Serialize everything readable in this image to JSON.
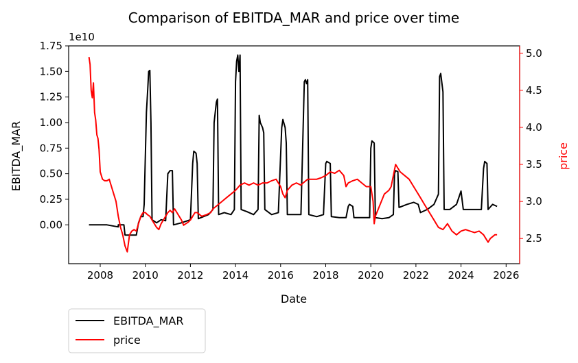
{
  "chart_data": {
    "type": "line",
    "title": "Comparison of EBITDA_MAR and price over time",
    "xlabel": "Date",
    "ylabel_left": "EBITDA_MAR",
    "ylabel_right": "price",
    "left_axis_multiplier": "1e10",
    "xlim": [
      2006.6,
      2026.6
    ],
    "ylim_left": [
      -0.38,
      1.75
    ],
    "ylim_right": [
      2.16,
      5.1
    ],
    "x_ticks": [
      2008,
      2010,
      2012,
      2014,
      2016,
      2018,
      2020,
      2022,
      2024,
      2026
    ],
    "y_ticks_left": [
      "0.00",
      "0.25",
      "0.50",
      "0.75",
      "1.00",
      "1.25",
      "1.50",
      "1.75"
    ],
    "y_ticks_right": [
      "2.5",
      "3.0",
      "3.5",
      "4.0",
      "4.5",
      "5.0"
    ],
    "legend_placement": "below-left",
    "grid": false,
    "colors": {
      "EBITDA_MAR": "#000000",
      "price": "#ff0000",
      "right_axis": "#ff0000"
    },
    "series": [
      {
        "name": "EBITDA_MAR",
        "axis": "left",
        "points": [
          [
            2007.5,
            0.0
          ],
          [
            2008.3,
            0.0
          ],
          [
            2008.8,
            -0.02
          ],
          [
            2008.8,
            0.0
          ],
          [
            2009.05,
            0.0
          ],
          [
            2009.1,
            -0.1
          ],
          [
            2009.6,
            -0.1
          ],
          [
            2009.7,
            0.02
          ],
          [
            2009.8,
            0.08
          ],
          [
            2009.9,
            0.08
          ],
          [
            2009.95,
            0.2
          ],
          [
            2010.05,
            1.1
          ],
          [
            2010.1,
            1.3
          ],
          [
            2010.15,
            1.5
          ],
          [
            2010.2,
            1.51
          ],
          [
            2010.25,
            1.0
          ],
          [
            2010.3,
            0.05
          ],
          [
            2010.5,
            0.02
          ],
          [
            2010.7,
            0.05
          ],
          [
            2010.9,
            0.04
          ],
          [
            2011.0,
            0.5
          ],
          [
            2011.1,
            0.53
          ],
          [
            2011.2,
            0.53
          ],
          [
            2011.25,
            0.0
          ],
          [
            2011.6,
            0.02
          ],
          [
            2012.0,
            0.05
          ],
          [
            2012.1,
            0.6
          ],
          [
            2012.15,
            0.72
          ],
          [
            2012.25,
            0.7
          ],
          [
            2012.3,
            0.6
          ],
          [
            2012.35,
            0.06
          ],
          [
            2012.8,
            0.1
          ],
          [
            2013.0,
            0.15
          ],
          [
            2013.05,
            1.0
          ],
          [
            2013.15,
            1.2
          ],
          [
            2013.2,
            1.23
          ],
          [
            2013.25,
            0.1
          ],
          [
            2013.5,
            0.12
          ],
          [
            2013.8,
            0.1
          ],
          [
            2013.95,
            0.15
          ],
          [
            2014.0,
            1.4
          ],
          [
            2014.05,
            1.6
          ],
          [
            2014.1,
            1.66
          ],
          [
            2014.15,
            1.5
          ],
          [
            2014.2,
            1.66
          ],
          [
            2014.25,
            0.15
          ],
          [
            2014.5,
            0.13
          ],
          [
            2014.8,
            0.1
          ],
          [
            2015.0,
            0.15
          ],
          [
            2015.05,
            1.07
          ],
          [
            2015.1,
            1.0
          ],
          [
            2015.2,
            0.95
          ],
          [
            2015.25,
            0.9
          ],
          [
            2015.3,
            0.15
          ],
          [
            2015.6,
            0.1
          ],
          [
            2015.9,
            0.12
          ],
          [
            2016.05,
            0.95
          ],
          [
            2016.1,
            1.03
          ],
          [
            2016.2,
            0.95
          ],
          [
            2016.25,
            0.8
          ],
          [
            2016.3,
            0.1
          ],
          [
            2016.6,
            0.1
          ],
          [
            2016.9,
            0.1
          ],
          [
            2017.05,
            1.4
          ],
          [
            2017.1,
            1.42
          ],
          [
            2017.15,
            1.38
          ],
          [
            2017.2,
            1.42
          ],
          [
            2017.25,
            0.1
          ],
          [
            2017.6,
            0.08
          ],
          [
            2017.9,
            0.1
          ],
          [
            2018.0,
            0.6
          ],
          [
            2018.05,
            0.62
          ],
          [
            2018.2,
            0.6
          ],
          [
            2018.25,
            0.08
          ],
          [
            2018.6,
            0.07
          ],
          [
            2018.9,
            0.07
          ],
          [
            2019.0,
            0.18
          ],
          [
            2019.05,
            0.2
          ],
          [
            2019.2,
            0.18
          ],
          [
            2019.25,
            0.07
          ],
          [
            2019.6,
            0.07
          ],
          [
            2019.95,
            0.07
          ],
          [
            2020.0,
            0.75
          ],
          [
            2020.05,
            0.82
          ],
          [
            2020.15,
            0.8
          ],
          [
            2020.2,
            0.07
          ],
          [
            2020.5,
            0.06
          ],
          [
            2020.8,
            0.07
          ],
          [
            2021.0,
            0.1
          ],
          [
            2021.05,
            0.5
          ],
          [
            2021.1,
            0.53
          ],
          [
            2021.2,
            0.52
          ],
          [
            2021.25,
            0.17
          ],
          [
            2021.6,
            0.2
          ],
          [
            2021.9,
            0.22
          ],
          [
            2022.1,
            0.2
          ],
          [
            2022.2,
            0.12
          ],
          [
            2022.5,
            0.15
          ],
          [
            2022.8,
            0.2
          ],
          [
            2023.0,
            0.3
          ],
          [
            2023.05,
            1.45
          ],
          [
            2023.1,
            1.48
          ],
          [
            2023.2,
            1.3
          ],
          [
            2023.25,
            0.15
          ],
          [
            2023.5,
            0.15
          ],
          [
            2023.8,
            0.2
          ],
          [
            2024.0,
            0.33
          ],
          [
            2024.1,
            0.15
          ],
          [
            2024.5,
            0.15
          ],
          [
            2024.9,
            0.15
          ],
          [
            2025.0,
            0.55
          ],
          [
            2025.05,
            0.62
          ],
          [
            2025.15,
            0.6
          ],
          [
            2025.2,
            0.15
          ],
          [
            2025.4,
            0.2
          ],
          [
            2025.6,
            0.18
          ]
        ]
      },
      {
        "name": "price",
        "axis": "right",
        "points": [
          [
            2007.5,
            4.95
          ],
          [
            2007.55,
            4.85
          ],
          [
            2007.6,
            4.5
          ],
          [
            2007.65,
            4.4
          ],
          [
            2007.7,
            4.6
          ],
          [
            2007.75,
            4.2
          ],
          [
            2007.8,
            4.1
          ],
          [
            2007.85,
            3.9
          ],
          [
            2007.9,
            3.85
          ],
          [
            2007.95,
            3.7
          ],
          [
            2008.0,
            3.4
          ],
          [
            2008.1,
            3.3
          ],
          [
            2008.2,
            3.28
          ],
          [
            2008.3,
            3.28
          ],
          [
            2008.4,
            3.3
          ],
          [
            2008.5,
            3.2
          ],
          [
            2008.6,
            3.1
          ],
          [
            2008.7,
            3.0
          ],
          [
            2008.8,
            2.8
          ],
          [
            2008.9,
            2.65
          ],
          [
            2009.0,
            2.55
          ],
          [
            2009.1,
            2.4
          ],
          [
            2009.2,
            2.32
          ],
          [
            2009.3,
            2.55
          ],
          [
            2009.4,
            2.6
          ],
          [
            2009.5,
            2.62
          ],
          [
            2009.6,
            2.6
          ],
          [
            2009.7,
            2.7
          ],
          [
            2009.8,
            2.8
          ],
          [
            2009.9,
            2.85
          ],
          [
            2010.0,
            2.85
          ],
          [
            2010.1,
            2.82
          ],
          [
            2010.2,
            2.8
          ],
          [
            2010.3,
            2.75
          ],
          [
            2010.4,
            2.7
          ],
          [
            2010.5,
            2.65
          ],
          [
            2010.6,
            2.62
          ],
          [
            2010.7,
            2.7
          ],
          [
            2010.8,
            2.75
          ],
          [
            2010.9,
            2.8
          ],
          [
            2011.0,
            2.85
          ],
          [
            2011.1,
            2.88
          ],
          [
            2011.2,
            2.85
          ],
          [
            2011.3,
            2.9
          ],
          [
            2011.4,
            2.85
          ],
          [
            2011.5,
            2.8
          ],
          [
            2011.6,
            2.75
          ],
          [
            2011.7,
            2.68
          ],
          [
            2011.8,
            2.7
          ],
          [
            2011.9,
            2.72
          ],
          [
            2012.0,
            2.75
          ],
          [
            2012.1,
            2.8
          ],
          [
            2012.2,
            2.85
          ],
          [
            2012.3,
            2.85
          ],
          [
            2012.5,
            2.8
          ],
          [
            2012.7,
            2.82
          ],
          [
            2012.9,
            2.85
          ],
          [
            2013.0,
            2.9
          ],
          [
            2013.2,
            2.95
          ],
          [
            2013.4,
            3.0
          ],
          [
            2013.6,
            3.05
          ],
          [
            2013.8,
            3.1
          ],
          [
            2014.0,
            3.15
          ],
          [
            2014.2,
            3.22
          ],
          [
            2014.4,
            3.25
          ],
          [
            2014.6,
            3.22
          ],
          [
            2014.8,
            3.25
          ],
          [
            2015.0,
            3.22
          ],
          [
            2015.2,
            3.25
          ],
          [
            2015.4,
            3.25
          ],
          [
            2015.6,
            3.28
          ],
          [
            2015.8,
            3.3
          ],
          [
            2015.9,
            3.25
          ],
          [
            2016.0,
            3.2
          ],
          [
            2016.1,
            3.1
          ],
          [
            2016.2,
            3.05
          ],
          [
            2016.3,
            3.15
          ],
          [
            2016.5,
            3.22
          ],
          [
            2016.7,
            3.25
          ],
          [
            2016.9,
            3.22
          ],
          [
            2017.0,
            3.25
          ],
          [
            2017.2,
            3.3
          ],
          [
            2017.4,
            3.3
          ],
          [
            2017.6,
            3.3
          ],
          [
            2017.8,
            3.32
          ],
          [
            2018.0,
            3.35
          ],
          [
            2018.2,
            3.4
          ],
          [
            2018.4,
            3.38
          ],
          [
            2018.6,
            3.42
          ],
          [
            2018.8,
            3.35
          ],
          [
            2018.9,
            3.2
          ],
          [
            2019.0,
            3.25
          ],
          [
            2019.2,
            3.28
          ],
          [
            2019.4,
            3.3
          ],
          [
            2019.6,
            3.25
          ],
          [
            2019.8,
            3.2
          ],
          [
            2020.0,
            3.2
          ],
          [
            2020.1,
            3.0
          ],
          [
            2020.15,
            2.7
          ],
          [
            2020.2,
            2.8
          ],
          [
            2020.4,
            2.95
          ],
          [
            2020.6,
            3.1
          ],
          [
            2020.8,
            3.15
          ],
          [
            2020.9,
            3.2
          ],
          [
            2021.0,
            3.35
          ],
          [
            2021.1,
            3.5
          ],
          [
            2021.2,
            3.45
          ],
          [
            2021.3,
            3.4
          ],
          [
            2021.5,
            3.35
          ],
          [
            2021.7,
            3.3
          ],
          [
            2021.9,
            3.2
          ],
          [
            2022.0,
            3.15
          ],
          [
            2022.2,
            3.05
          ],
          [
            2022.4,
            2.95
          ],
          [
            2022.6,
            2.85
          ],
          [
            2022.8,
            2.75
          ],
          [
            2023.0,
            2.65
          ],
          [
            2023.2,
            2.62
          ],
          [
            2023.4,
            2.7
          ],
          [
            2023.6,
            2.6
          ],
          [
            2023.8,
            2.55
          ],
          [
            2024.0,
            2.6
          ],
          [
            2024.2,
            2.62
          ],
          [
            2024.4,
            2.6
          ],
          [
            2024.6,
            2.58
          ],
          [
            2024.8,
            2.6
          ],
          [
            2025.0,
            2.55
          ],
          [
            2025.1,
            2.5
          ],
          [
            2025.2,
            2.45
          ],
          [
            2025.3,
            2.5
          ],
          [
            2025.5,
            2.55
          ],
          [
            2025.6,
            2.55
          ]
        ]
      }
    ]
  }
}
